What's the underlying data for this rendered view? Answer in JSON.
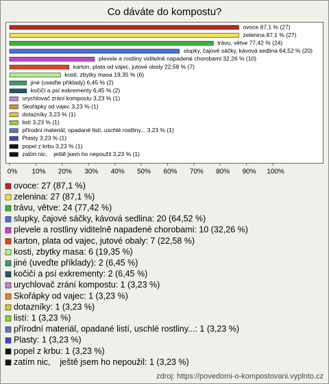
{
  "chart_data": {
    "type": "hbar",
    "title": "Co dáváte do kompostu?",
    "values": [
      87.1,
      87.1,
      77.42,
      64.52,
      32.26,
      22.58,
      19.35,
      6.45,
      6.45,
      3.23,
      3.23,
      3.23,
      3.23,
      3.23,
      3.23,
      3.23,
      3.23
    ],
    "value_labels": [
      "ovoce 87,1 % (27)",
      "zelenina 87,1 % (27)",
      "trávu, větve 77,42 % (24)",
      "slupky, čajové sáčky, kávová sedlina 64,52 % (20)",
      "plevele a rostliny viditelně napadené chorobami 32,26 % (10)",
      "karton, plata od vajec, jutové obaly 22,58 % (7)",
      "kosti, zbytky masa 19,35 % (6)",
      "jiné (uveďte příklady) 6,45 % (2)",
      "kočičí a psí exkrementy 6,45 % (2)",
      "urychlovač zrání kompostu 3,23 % (1)",
      "Skořápky od vajec 3,23 % (1)",
      "dotazníky 3,23 % (1)",
      "listí 3,23 % (1)",
      "přírodní materiál, opadané listí, uschlé rostliny... 3,23 % (1)",
      "Plasty 3,23 % (1)",
      "popel z krbu 3,23 % (1)",
      "zatím nic,    ještě jsem ho nepoužil 3,23 % (1)"
    ],
    "legend": [
      "ovoce: 27 (87,1 %)",
      "zelenina: 27 (87,1 %)",
      "trávu, větve: 24 (77,42 %)",
      "slupky, čajové sáčky, kávová sedlina: 20 (64,52 %)",
      "plevele a rostliny viditelně napadené chorobami: 10 (32,26 %)",
      "karton, plata od vajec, jutové obaly: 7 (22,58 %)",
      "kosti, zbytky masa: 6 (19,35 %)",
      "jiné (uveďte příklady): 2 (6,45 %)",
      "kočičí a psí exkrementy: 2 (6,45 %)",
      "urychlovač zrání kompostu: 1 (3,23 %)",
      "Skořápky od vajec: 1 (3,23 %)",
      "dotazníky: 1 (3,23 %)",
      "listí: 1 (3,23 %)",
      "přírodní materiál, opadané listí, uschlé rostliny...: 1 (3,23 %)",
      "Plasty: 1 (3,23 %)",
      "popel z krbu: 1 (3,23 %)",
      "zatím nic,    ještě jsem ho nepoužil: 1 (3,23 %)"
    ],
    "colors": [
      "#b8281e",
      "#f2e34a",
      "#3cb43c",
      "#4a6fe0",
      "#c048c8",
      "#e0441e",
      "#b4f08c",
      "#3c9c6c",
      "#1e5a6a",
      "#c884c8",
      "#e8842c",
      "#e0c42c",
      "#90d040",
      "#5a78c0",
      "#4646c8",
      "#141414",
      "#141414"
    ],
    "xlim": [
      0,
      100
    ],
    "xticks": [
      {
        "value": 0,
        "label": "0%"
      },
      {
        "value": 10,
        "label": "10%"
      },
      {
        "value": 20,
        "label": "20%"
      },
      {
        "value": 30,
        "label": "30%"
      },
      {
        "value": 40,
        "label": "40%"
      },
      {
        "value": 50,
        "label": "50%"
      },
      {
        "value": 60,
        "label": "60%"
      },
      {
        "value": 70,
        "label": "70%"
      },
      {
        "value": 80,
        "label": "80%"
      },
      {
        "value": 90,
        "label": "90%"
      },
      {
        "value": 100,
        "label": "100%"
      }
    ],
    "source": "zdroj: https://povedomi-o-kompostovani.vyplnto.cz"
  }
}
